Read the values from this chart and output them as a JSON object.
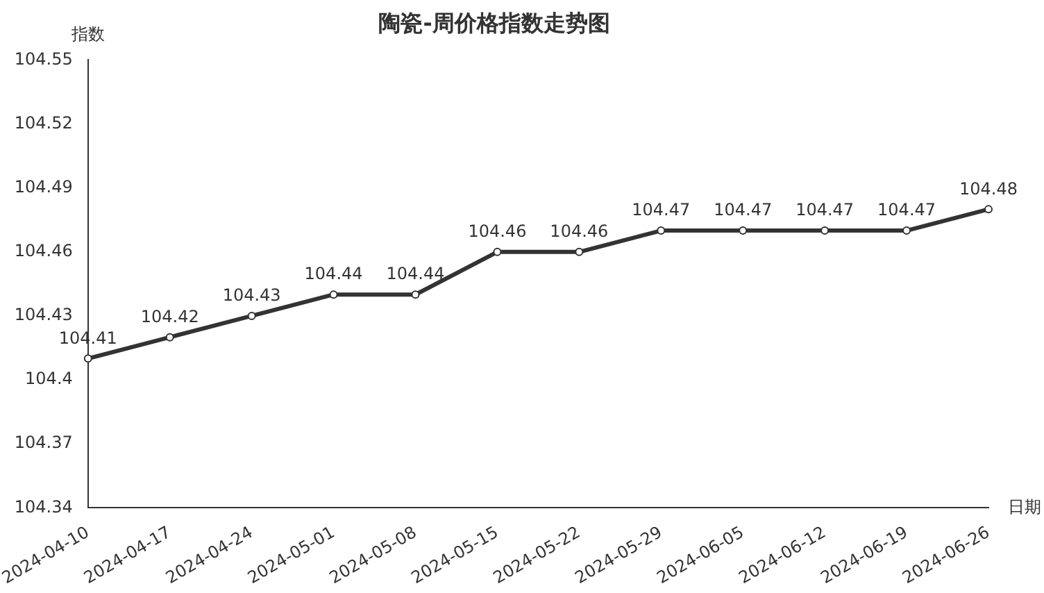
{
  "chart_data": {
    "type": "line",
    "title": "陶瓷-周价格指数走势图",
    "xlabel": "日期",
    "ylabel": "指数",
    "categories": [
      "2024-04-10",
      "2024-04-17",
      "2024-04-24",
      "2024-05-01",
      "2024-05-08",
      "2024-05-15",
      "2024-05-22",
      "2024-05-29",
      "2024-06-05",
      "2024-06-12",
      "2024-06-19",
      "2024-06-26"
    ],
    "series": [
      {
        "color": "#333333",
        "values": [
          104.41,
          104.42,
          104.43,
          104.44,
          104.44,
          104.46,
          104.46,
          104.47,
          104.47,
          104.47,
          104.47,
          104.48
        ]
      }
    ],
    "ylim": [
      104.34,
      104.55
    ],
    "yticks": [
      104.34,
      104.37,
      104.4,
      104.43,
      104.46,
      104.49,
      104.52,
      104.55
    ],
    "grid": false,
    "legend": false,
    "marker": "circle",
    "line_style": "solid",
    "data_labels": true
  }
}
